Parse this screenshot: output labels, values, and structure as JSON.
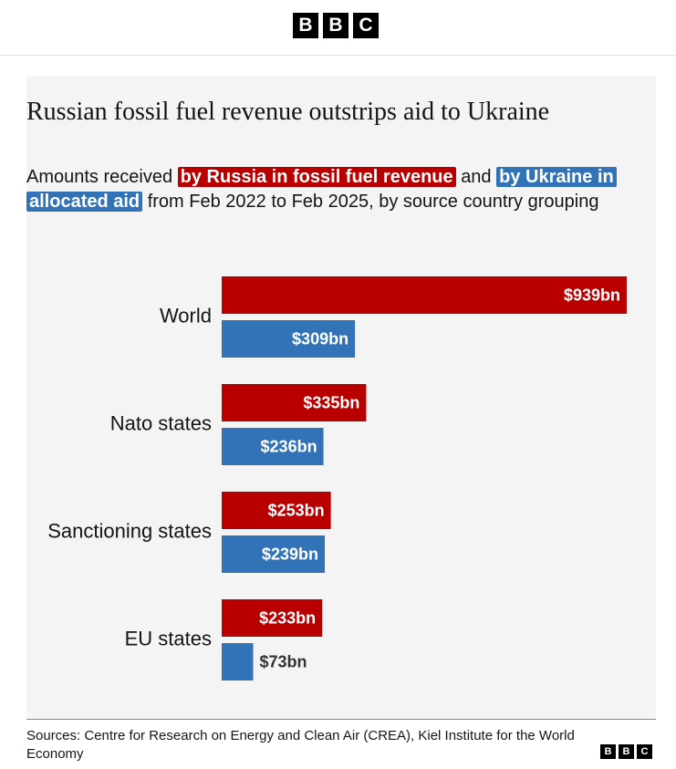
{
  "brand": [
    "B",
    "B",
    "C"
  ],
  "chart_data": {
    "type": "bar",
    "orientation": "horizontal",
    "title": "Russian fossil fuel revenue outstrips aid to Ukraine",
    "subtitle": [
      "Amounts received",
      "and",
      "from Feb 2022 to Feb 2025, by source country grouping"
    ],
    "categories": [
      "World",
      "Nato states",
      "Sanctioning states",
      "EU states"
    ],
    "series": [
      {
        "name": "by Russia in fossil fuel revenue",
        "color": "#b80000",
        "values": [
          939,
          335,
          253,
          233
        ],
        "value_labels": [
          "$939bn",
          "$335bn",
          "$253bn",
          "$233bn"
        ]
      },
      {
        "name": "by Ukraine in allocated aid",
        "color": "#3273b8",
        "values": [
          309,
          236,
          239,
          73
        ],
        "value_labels": [
          "$309bn",
          "$236bn",
          "$239bn",
          "$73bn"
        ]
      }
    ],
    "source": "Sources: Centre for Research on Energy and Clean Air (CREA), Kiel Institute for the World Economy"
  }
}
